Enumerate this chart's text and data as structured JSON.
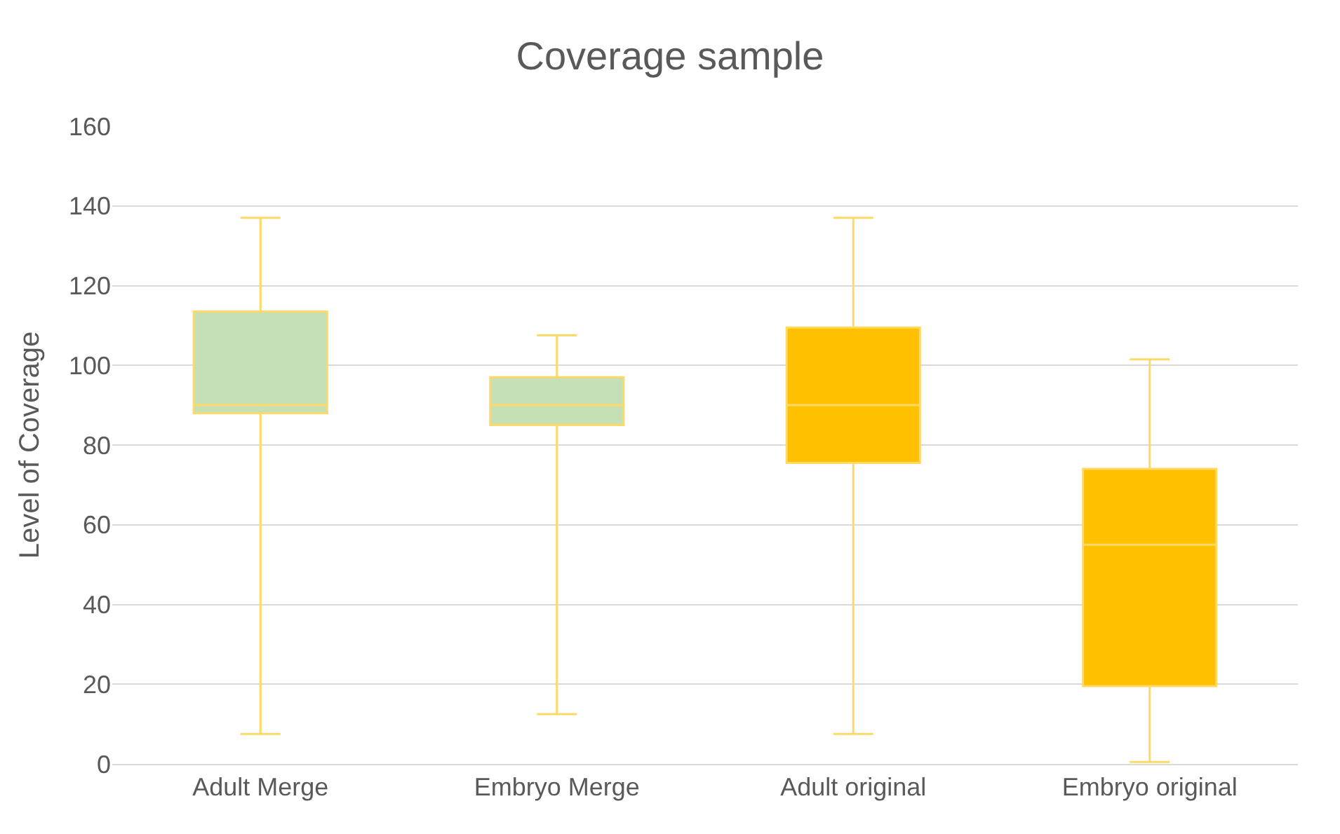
{
  "chart_data": {
    "type": "box",
    "title": "Coverage sample",
    "ylabel": "Level of Coverage",
    "categories": [
      "Adult Merge",
      "Embryo Merge",
      "Adult original",
      "Embryo original"
    ],
    "boxes": [
      {
        "low": 7.5,
        "q1": 88,
        "median": 90,
        "q3": 113.5,
        "high": 137
      },
      {
        "low": 12.5,
        "q1": 85,
        "median": 90,
        "q3": 97,
        "high": 107.5
      },
      {
        "low": 7.5,
        "q1": 75.5,
        "median": 90,
        "q3": 109.5,
        "high": 137
      },
      {
        "low": 0.5,
        "q1": 19.5,
        "median": 55,
        "q3": 74,
        "high": 101.5
      }
    ],
    "colors": [
      "#c5e0b4",
      "#c5e0b4",
      "#ffc000",
      "#ffc000"
    ],
    "ylim": [
      0,
      160
    ],
    "yticks": [
      0,
      20,
      40,
      60,
      80,
      100,
      120,
      140,
      160
    ],
    "grid": "y",
    "legend": false
  }
}
